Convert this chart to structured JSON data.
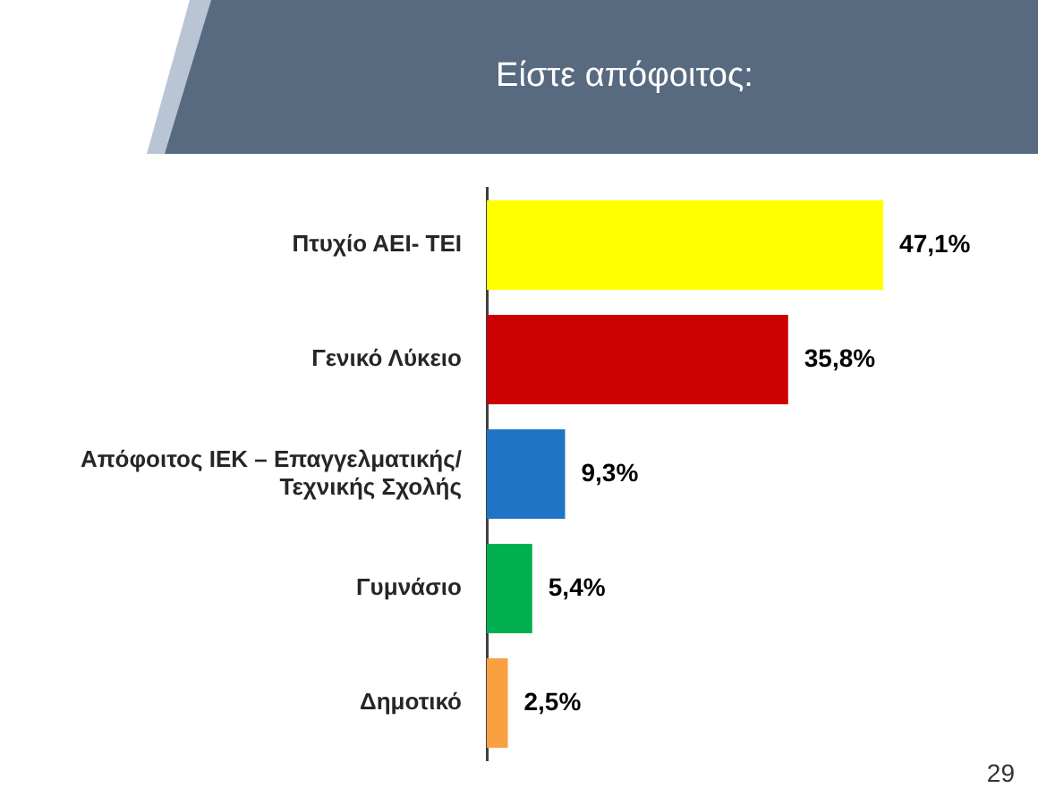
{
  "chart_data": {
    "type": "bar",
    "orientation": "horizontal",
    "title": "Είστε απόφοιτος:",
    "categories": [
      "Πτυχίο ΑΕΙ- ΤΕΙ",
      "Γενικό Λύκειο",
      "Απόφοιτος ΙΕΚ – Επαγγελματικής/ Τεχνικής Σχολής",
      "Γυμνάσιο",
      "Δημοτικό"
    ],
    "values": [
      47.1,
      35.8,
      9.3,
      5.4,
      2.5
    ],
    "colors": [
      "#ffff00",
      "#cc0000",
      "#1f74c6",
      "#00b050",
      "#f9a040"
    ],
    "value_labels": [
      "47,1%",
      "35,8%",
      "9,3%",
      "5,4%",
      "2,5%"
    ],
    "grid": false,
    "legend": false,
    "tick_labels": "y",
    "annotations": [
      "29"
    ]
  }
}
